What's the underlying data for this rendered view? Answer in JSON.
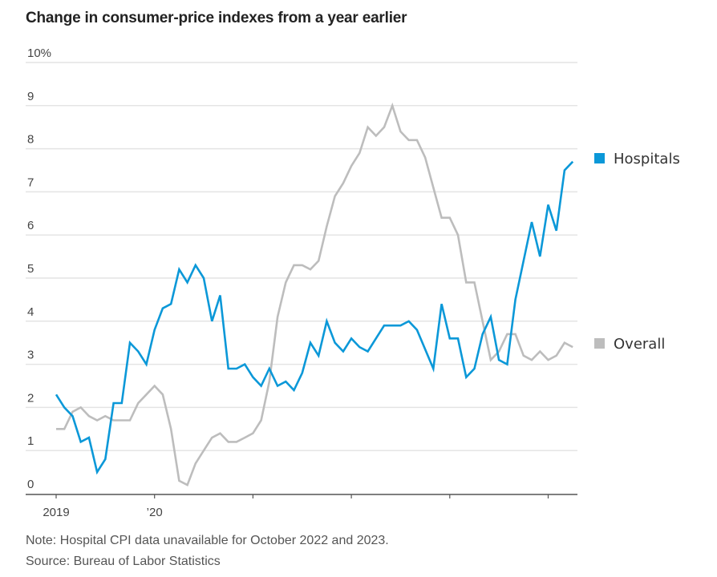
{
  "chart_data": {
    "type": "line",
    "title": "Change in consumer-price indexes from a year earlier",
    "xlabel": "",
    "ylabel": "",
    "ylim": [
      0,
      10
    ],
    "y_ticks": [
      "0",
      "1",
      "2",
      "3",
      "4",
      "5",
      "6",
      "7",
      "8",
      "9",
      "10%"
    ],
    "x_ticks": [
      {
        "label": "2019",
        "month_index": 0
      },
      {
        "label": "’20",
        "month_index": 12
      },
      {
        "label": "",
        "month_index": 24
      },
      {
        "label": "",
        "month_index": 36
      },
      {
        "label": "",
        "month_index": 48
      },
      {
        "label": "",
        "month_index": 60
      }
    ],
    "x_range_months": [
      0,
      64.5
    ],
    "grid": true,
    "legend_placement": "right",
    "series": [
      {
        "name": "Hospitals",
        "color": "#0b98d8",
        "values": [
          2.3,
          2.0,
          1.8,
          1.2,
          1.3,
          0.5,
          0.8,
          2.1,
          2.1,
          3.5,
          3.3,
          3.0,
          3.8,
          4.3,
          4.4,
          5.2,
          4.9,
          5.3,
          5.0,
          4.0,
          4.6,
          2.9,
          2.9,
          3.0,
          2.7,
          2.5,
          2.9,
          2.5,
          2.6,
          2.4,
          2.8,
          3.5,
          3.2,
          4.0,
          3.5,
          3.3,
          3.6,
          3.4,
          3.3,
          3.6,
          3.9,
          3.9,
          3.9,
          4.0,
          3.8,
          null,
          2.9,
          4.4,
          3.6,
          3.6,
          2.7,
          2.9,
          3.7,
          4.1,
          3.1,
          3.0,
          4.5,
          null,
          6.3,
          5.5,
          6.7,
          6.1,
          7.5,
          7.7
        ]
      },
      {
        "name": "Overall",
        "color": "#bdbdbd",
        "values": [
          1.5,
          1.5,
          1.9,
          2.0,
          1.8,
          1.7,
          1.8,
          1.7,
          1.7,
          1.7,
          2.1,
          2.3,
          2.5,
          2.3,
          1.5,
          0.3,
          0.2,
          0.7,
          1.0,
          1.3,
          1.4,
          1.2,
          1.2,
          1.3,
          1.4,
          1.7,
          2.6,
          4.1,
          4.9,
          5.3,
          5.3,
          5.2,
          5.4,
          6.2,
          6.9,
          7.2,
          7.6,
          7.9,
          8.5,
          8.3,
          8.5,
          9.0,
          8.4,
          8.2,
          8.2,
          7.8,
          7.1,
          6.4,
          6.4,
          6.0,
          4.9,
          4.9,
          4.0,
          3.1,
          3.3,
          3.7,
          3.7,
          3.2,
          3.1,
          3.3,
          3.1,
          3.2,
          3.5,
          3.4
        ]
      }
    ],
    "legend": [
      {
        "label": "Hospitals",
        "color": "#0b98d8",
        "value_anchor": 7.7
      },
      {
        "label": "Overall",
        "color": "#bdbdbd",
        "value_anchor": 3.4
      }
    ]
  },
  "footer": {
    "note": "Note: Hospital CPI data unavailable for October 2022 and 2023.",
    "source": "Source: Bureau of Labor Statistics"
  }
}
